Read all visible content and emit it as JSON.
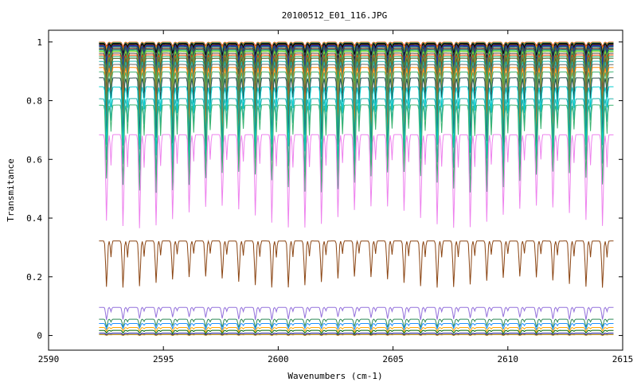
{
  "chart_data": {
    "type": "line",
    "title": "20100512_E01_116.JPG",
    "xlabel": "Wavenumbers (cm-1)",
    "ylabel": "Transmitance",
    "xlim": [
      2590,
      2615
    ],
    "ylim": [
      -0.05,
      1.04
    ],
    "grid": false,
    "x_ticks": [
      2590,
      2595,
      2600,
      2605,
      2610,
      2615
    ],
    "x_tick_labels": [
      "2590",
      "2595",
      "2600",
      "2605",
      "2610",
      "2615"
    ],
    "y_ticks": [
      0,
      0.2,
      0.4,
      0.6,
      0.8,
      1
    ],
    "y_tick_labels": [
      "0",
      "0.2",
      "0.4",
      "0.6",
      "0.8",
      "1"
    ],
    "x_range": [
      2592.2,
      2614.6
    ],
    "line_spacing_cm1": 0.72,
    "series": [
      {
        "color": "#e41a1c",
        "baseline": 1.0,
        "min": 0.985
      },
      {
        "color": "#ff7f00",
        "baseline": 1.0,
        "min": 0.978
      },
      {
        "color": "#4daf4a",
        "baseline": 0.999,
        "min": 0.97
      },
      {
        "color": "#377eb8",
        "baseline": 0.998,
        "min": 0.96
      },
      {
        "color": "#000000",
        "baseline": 0.997,
        "min": 0.955
      },
      {
        "color": "#000000",
        "baseline": 0.995,
        "min": 0.94
      },
      {
        "color": "#8b4513",
        "baseline": 0.993,
        "min": 0.93
      },
      {
        "color": "#1f3fbf",
        "baseline": 0.991,
        "min": 0.92
      },
      {
        "color": "#0000cd",
        "baseline": 0.99,
        "min": 0.91
      },
      {
        "color": "#2e8b57",
        "baseline": 0.988,
        "min": 0.9
      },
      {
        "color": "#333333",
        "baseline": 0.985,
        "min": 0.88
      },
      {
        "color": "#a0522d",
        "baseline": 0.982,
        "min": 0.86
      },
      {
        "color": "#008b8b",
        "baseline": 0.98,
        "min": 0.85
      },
      {
        "color": "#32cd32",
        "baseline": 0.977,
        "min": 0.83
      },
      {
        "color": "#9acd32",
        "baseline": 0.975,
        "min": 0.82
      },
      {
        "color": "#444444",
        "baseline": 0.97,
        "min": 0.8
      },
      {
        "color": "#ff4500",
        "baseline": 0.965,
        "min": 0.78
      },
      {
        "color": "#22aa66",
        "baseline": 0.96,
        "min": 0.76
      },
      {
        "color": "#556b2f",
        "baseline": 0.955,
        "min": 0.74
      },
      {
        "color": "#20b2aa",
        "baseline": 0.945,
        "min": 0.72
      },
      {
        "color": "#666666",
        "baseline": 0.935,
        "min": 0.7
      },
      {
        "color": "#ff8c00",
        "baseline": 0.925,
        "min": 0.69
      },
      {
        "color": "#3cb371",
        "baseline": 0.91,
        "min": 0.67
      },
      {
        "color": "#2f4f4f",
        "baseline": 0.89,
        "min": 0.64
      },
      {
        "color": "#00ced1",
        "baseline": 0.86,
        "min": 0.6
      },
      {
        "color": "#20b2aa",
        "baseline": 0.82,
        "min": 0.55
      },
      {
        "color": "#3cb371",
        "baseline": 0.8,
        "min": 0.5
      },
      {
        "color": "#ee82ee",
        "baseline": 0.7,
        "min": 0.38
      },
      {
        "color": "#8b4513",
        "baseline": 0.33,
        "min": 0.17
      },
      {
        "color": "#9370db",
        "baseline": 0.098,
        "min": 0.055
      },
      {
        "color": "#2e8b57",
        "baseline": 0.057,
        "min": 0.028
      },
      {
        "color": "#1e90ff",
        "baseline": 0.042,
        "min": 0.02
      },
      {
        "color": "#ffa500",
        "baseline": 0.028,
        "min": 0.012
      },
      {
        "color": "#006400",
        "baseline": 0.018,
        "min": 0.006
      },
      {
        "color": "#000080",
        "baseline": 0.008,
        "min": 0.001
      },
      {
        "color": "#b8860b",
        "baseline": 0.003,
        "min": 0.0
      }
    ]
  }
}
